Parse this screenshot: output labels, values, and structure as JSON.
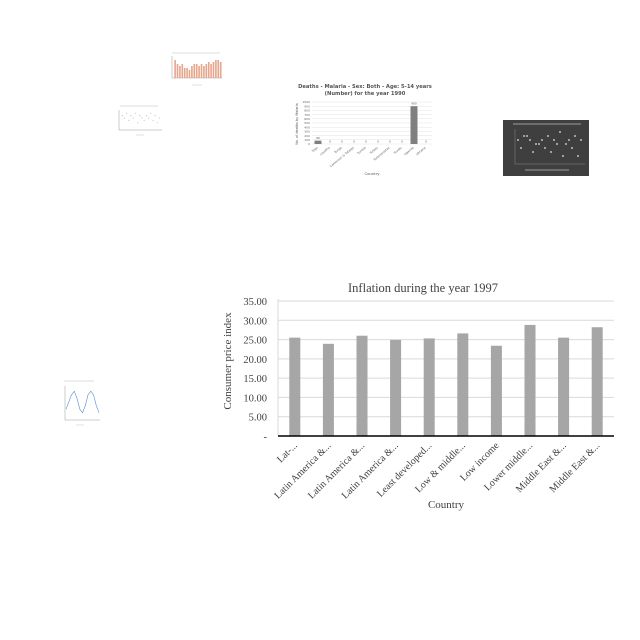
{
  "chart_data": [
    {
      "type": "bar",
      "title": "Inflation during the year 1997",
      "xlabel": "Country",
      "ylabel": "Consumer price index",
      "ylim": [
        0,
        35
      ],
      "yticks": [
        "-",
        "5.00",
        "10.00",
        "15.00",
        "20.00",
        "25.00",
        "30.00",
        "35.00"
      ],
      "categories": [
        "Lat-...",
        "Latin America &...",
        "Latin America &...",
        "Latin America &...",
        "Least developed...",
        "Low & middle...",
        "Low income",
        "Lower middle...",
        "Middle East &...",
        "Middle East &..."
      ],
      "values": [
        25.5,
        23.9,
        26.0,
        24.9,
        25.3,
        26.6,
        23.4,
        28.8,
        25.5,
        28.2
      ],
      "bar_color": "#a6a6a6",
      "grid": true,
      "legend": "none"
    },
    {
      "type": "bar",
      "title": "Deaths - Malaria - Sex: Both - Age: 5-14 years (Number) for the year 1990",
      "xlabel": "Country",
      "ylabel": "No. of deaths by Malaria",
      "categories": [
        "Togo",
        "Lesotho",
        "Tonga",
        "Cameroon & Tobago",
        "Tunisia",
        "Turkey",
        "Turkmenistan",
        "Tuvalu",
        "Uganda",
        "Ukraine"
      ],
      "values": [
        80,
        0,
        0,
        0,
        0,
        0,
        0,
        0,
        900,
        0
      ],
      "ylim": [
        0,
        1000
      ],
      "bar_color": "#7f7f7f"
    },
    {
      "type": "bar",
      "categories": [
        "1",
        "2",
        "3",
        "4",
        "5",
        "6",
        "7",
        "8",
        "9",
        "10",
        "11",
        "12",
        "13",
        "14",
        "15",
        "16",
        "17",
        "18",
        "19",
        "20"
      ],
      "values": [
        9,
        7,
        6,
        7,
        5,
        5,
        4,
        6,
        7,
        7,
        6,
        7,
        6,
        7,
        8,
        7,
        8,
        9,
        9,
        8
      ],
      "bar_color": "#e7a58c"
    },
    {
      "type": "scatter",
      "points": [
        [
          1,
          6
        ],
        [
          2,
          5
        ],
        [
          3,
          7
        ],
        [
          4,
          4
        ],
        [
          5,
          6
        ],
        [
          6,
          5
        ],
        [
          7,
          7
        ],
        [
          8,
          3
        ],
        [
          9,
          6
        ],
        [
          10,
          5
        ],
        [
          11,
          4
        ],
        [
          12,
          6
        ],
        [
          13,
          5
        ],
        [
          14,
          7
        ],
        [
          15,
          4
        ],
        [
          16,
          6
        ],
        [
          17,
          3
        ],
        [
          18,
          5
        ]
      ],
      "marker_color": "#c8c8c8"
    },
    {
      "type": "scatter",
      "points": [
        [
          1,
          6
        ],
        [
          2,
          4
        ],
        [
          3,
          7
        ],
        [
          4,
          7
        ],
        [
          5,
          6
        ],
        [
          6,
          3
        ],
        [
          7,
          5
        ],
        [
          8,
          5
        ],
        [
          9,
          6
        ],
        [
          10,
          4
        ],
        [
          11,
          7
        ],
        [
          12,
          3
        ],
        [
          13,
          6
        ],
        [
          14,
          5
        ],
        [
          15,
          8
        ],
        [
          16,
          2
        ],
        [
          17,
          5
        ],
        [
          18,
          6
        ],
        [
          19,
          4
        ],
        [
          20,
          7
        ],
        [
          21,
          2
        ],
        [
          22,
          6
        ]
      ],
      "background": "#3f3f3f",
      "marker_color": "#e6e6e6"
    },
    {
      "type": "line",
      "values": [
        3,
        5,
        7,
        8,
        6,
        3,
        2,
        4,
        7,
        8,
        7,
        4,
        2
      ],
      "line_color": "#5b8bd0"
    }
  ]
}
